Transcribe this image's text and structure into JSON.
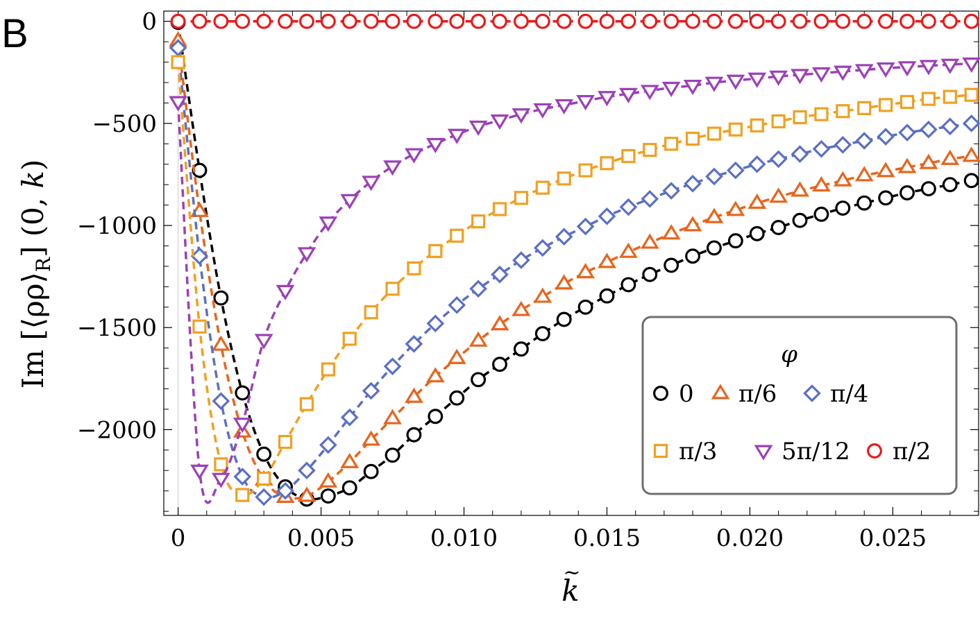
{
  "panel_label": "B",
  "chart_data": {
    "type": "line",
    "title": "",
    "xlabel": "k̃",
    "ylabel": "Im [⟨ρρ⟩_R] (0, k⃗)",
    "xlim": [
      -0.0005,
      0.028
    ],
    "ylim": [
      -2420,
      50
    ],
    "x_ticks": [
      0,
      0.005,
      0.01,
      0.015,
      0.02,
      0.025
    ],
    "x_tick_labels": [
      "0",
      "0.005",
      "0.010",
      "0.015",
      "0.020",
      "0.025"
    ],
    "y_ticks": [
      0,
      -500,
      -1000,
      -1500,
      -2000
    ],
    "y_tick_labels": [
      "0",
      "−500",
      "−1000",
      "−1500",
      "−2000"
    ],
    "grid": false,
    "legend_title": "φ",
    "legend_position": "bottom-right",
    "series": [
      {
        "name": "0",
        "color": "#000000",
        "marker": "circle",
        "x": [
          0.0,
          0.00075,
          0.0015,
          0.00225,
          0.003,
          0.00375,
          0.0045,
          0.00525,
          0.006,
          0.00675,
          0.0075,
          0.00825,
          0.009,
          0.00975,
          0.0105,
          0.01125,
          0.012,
          0.01275,
          0.0135,
          0.01425,
          0.015,
          0.01575,
          0.0165,
          0.01725,
          0.018,
          0.01875,
          0.0195,
          0.02025,
          0.021,
          0.02175,
          0.0225,
          0.02325,
          0.024,
          0.02475,
          0.0255,
          0.02625,
          0.027,
          0.02775
        ],
        "y": [
          -5,
          -730,
          -1355,
          -1820,
          -2120,
          -2280,
          -2340,
          -2325,
          -2285,
          -2205,
          -2125,
          -2025,
          -1935,
          -1845,
          -1755,
          -1680,
          -1605,
          -1530,
          -1460,
          -1400,
          -1345,
          -1290,
          -1240,
          -1195,
          -1150,
          -1110,
          -1075,
          -1040,
          -1010,
          -975,
          -945,
          -915,
          -890,
          -865,
          -840,
          -820,
          -800,
          -780
        ]
      },
      {
        "name": "π/6",
        "color": "#e8641c",
        "marker": "triangle-up",
        "x": [
          0.0,
          0.00075,
          0.0015,
          0.00225,
          0.003,
          0.00375,
          0.0045,
          0.00525,
          0.006,
          0.00675,
          0.0075,
          0.00825,
          0.009,
          0.00975,
          0.0105,
          0.01125,
          0.012,
          0.01275,
          0.0135,
          0.01425,
          0.015,
          0.01575,
          0.0165,
          0.01725,
          0.018,
          0.01875,
          0.0195,
          0.02025,
          0.021,
          0.02175,
          0.0225,
          0.02325,
          0.024,
          0.02475,
          0.0255,
          0.02625,
          0.027,
          0.02775
        ],
        "y": [
          -95,
          -930,
          -1585,
          -2010,
          -2245,
          -2330,
          -2325,
          -2255,
          -2160,
          -2050,
          -1945,
          -1840,
          -1740,
          -1650,
          -1565,
          -1485,
          -1415,
          -1350,
          -1285,
          -1230,
          -1180,
          -1130,
          -1085,
          -1040,
          -1000,
          -960,
          -925,
          -890,
          -860,
          -830,
          -805,
          -780,
          -755,
          -735,
          -715,
          -695,
          -675,
          -660
        ]
      },
      {
        "name": "π/4",
        "color": "#5b6fc4",
        "marker": "diamond",
        "x": [
          0.0,
          0.00075,
          0.0015,
          0.00225,
          0.003,
          0.00375,
          0.0045,
          0.00525,
          0.006,
          0.00675,
          0.0075,
          0.00825,
          0.009,
          0.00975,
          0.0105,
          0.01125,
          0.012,
          0.01275,
          0.0135,
          0.01425,
          0.015,
          0.01575,
          0.0165,
          0.01725,
          0.018,
          0.01875,
          0.0195,
          0.02025,
          0.021,
          0.02175,
          0.0225,
          0.02325,
          0.024,
          0.02475,
          0.0255,
          0.02625,
          0.027,
          0.02775
        ],
        "y": [
          -130,
          -1150,
          -1860,
          -2230,
          -2330,
          -2300,
          -2200,
          -2075,
          -1940,
          -1810,
          -1690,
          -1580,
          -1480,
          -1390,
          -1310,
          -1240,
          -1170,
          -1110,
          -1055,
          -1005,
          -955,
          -910,
          -870,
          -830,
          -795,
          -760,
          -730,
          -700,
          -675,
          -650,
          -625,
          -605,
          -585,
          -565,
          -545,
          -530,
          -515,
          -500
        ]
      },
      {
        "name": "π/3",
        "color": "#f0a020",
        "marker": "square",
        "x": [
          0.0,
          0.00075,
          0.0015,
          0.00225,
          0.003,
          0.00375,
          0.0045,
          0.00525,
          0.006,
          0.00675,
          0.0075,
          0.00825,
          0.009,
          0.00975,
          0.0105,
          0.01125,
          0.012,
          0.01275,
          0.0135,
          0.01425,
          0.015,
          0.01575,
          0.0165,
          0.01725,
          0.018,
          0.01875,
          0.0195,
          0.02025,
          0.021,
          0.02175,
          0.0225,
          0.02325,
          0.024,
          0.02475,
          0.0255,
          0.02625,
          0.027,
          0.02775
        ],
        "y": [
          -200,
          -1495,
          -2170,
          -2320,
          -2240,
          -2060,
          -1875,
          -1705,
          -1555,
          -1425,
          -1310,
          -1210,
          -1125,
          -1050,
          -980,
          -920,
          -865,
          -815,
          -770,
          -730,
          -695,
          -660,
          -630,
          -600,
          -575,
          -550,
          -530,
          -510,
          -490,
          -470,
          -455,
          -440,
          -425,
          -410,
          -395,
          -380,
          -370,
          -360
        ]
      },
      {
        "name": "5π/12",
        "color": "#9b40b8",
        "marker": "triangle-down",
        "x": [
          0.0,
          0.00075,
          0.0015,
          0.00225,
          0.003,
          0.00375,
          0.0045,
          0.00525,
          0.006,
          0.00675,
          0.0075,
          0.00825,
          0.009,
          0.00975,
          0.0105,
          0.01125,
          0.012,
          0.01275,
          0.0135,
          0.01425,
          0.015,
          0.01575,
          0.0165,
          0.01725,
          0.018,
          0.01875,
          0.0195,
          0.02025,
          0.021,
          0.02175,
          0.0225,
          0.02325,
          0.024,
          0.02475,
          0.0255,
          0.02625,
          0.027,
          0.02775
        ],
        "y": [
          -395,
          -2200,
          -2240,
          -1970,
          -1560,
          -1320,
          -1135,
          -985,
          -875,
          -785,
          -710,
          -650,
          -600,
          -555,
          -515,
          -485,
          -455,
          -430,
          -410,
          -390,
          -370,
          -355,
          -340,
          -325,
          -315,
          -300,
          -290,
          -280,
          -270,
          -262,
          -254,
          -246,
          -238,
          -230,
          -224,
          -218,
          -212,
          -206
        ]
      },
      {
        "name": "π/2",
        "color": "#e81a1a",
        "marker": "circle",
        "x": [
          0.0,
          0.00075,
          0.0015,
          0.00225,
          0.003,
          0.00375,
          0.0045,
          0.00525,
          0.006,
          0.00675,
          0.0075,
          0.00825,
          0.009,
          0.00975,
          0.0105,
          0.01125,
          0.012,
          0.01275,
          0.0135,
          0.01425,
          0.015,
          0.01575,
          0.0165,
          0.01725,
          0.018,
          0.01875,
          0.0195,
          0.02025,
          0.021,
          0.02175,
          0.0225,
          0.02325,
          0.024,
          0.02475,
          0.0255,
          0.02625,
          0.027,
          0.02775
        ],
        "y": [
          0,
          0,
          0,
          0,
          0,
          0,
          0,
          0,
          0,
          0,
          0,
          0,
          0,
          0,
          0,
          0,
          0,
          0,
          0,
          0,
          0,
          0,
          0,
          0,
          0,
          0,
          0,
          0,
          0,
          0,
          0,
          0,
          0,
          0,
          0,
          0,
          0,
          0
        ]
      }
    ]
  }
}
